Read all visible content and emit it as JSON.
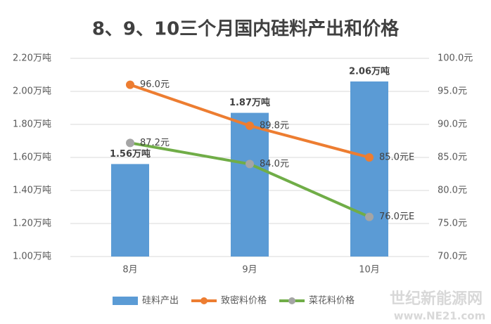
{
  "chart_data": {
    "type": "bar-line",
    "title": "8、9、10三个月国内硅料产出和价格",
    "categories": [
      "8月",
      "9月",
      "10月"
    ],
    "series": [
      {
        "name": "硅料产出",
        "type": "bar",
        "color": "#5b9bd5",
        "values": [
          1.56,
          1.87,
          2.06
        ],
        "value_labels": [
          "1.56万吨",
          "1.87万吨",
          "2.06万吨"
        ]
      },
      {
        "name": "致密料价格",
        "type": "line",
        "axis": "y2",
        "color": "#ed7d31",
        "marker_color": "#ed7d31",
        "values": [
          96.0,
          89.8,
          85.0
        ],
        "value_labels": [
          "96.0元",
          "89.8元",
          "85.0元E"
        ]
      },
      {
        "name": "菜花料价格",
        "type": "line",
        "axis": "y2",
        "color": "#70ad47",
        "marker_color": "#a5a5a5",
        "values": [
          87.2,
          84.0,
          76.0
        ],
        "value_labels": [
          "87.2元",
          "84.0元",
          "76.0元E"
        ]
      }
    ],
    "ylim": [
      1.0,
      2.2
    ],
    "yticks": [
      {
        "value": 1.0,
        "label": "1.00万吨"
      },
      {
        "value": 1.2,
        "label": "1.20万吨"
      },
      {
        "value": 1.4,
        "label": "1.40万吨"
      },
      {
        "value": 1.6,
        "label": "1.60万吨"
      },
      {
        "value": 1.8,
        "label": "1.80万吨"
      },
      {
        "value": 2.0,
        "label": "2.00万吨"
      },
      {
        "value": 2.2,
        "label": "2.20万吨"
      }
    ],
    "y2lim": [
      70,
      100
    ],
    "y2ticks": [
      {
        "value": 70,
        "label": "70.0元"
      },
      {
        "value": 75,
        "label": "75.0元"
      },
      {
        "value": 80,
        "label": "80.0元"
      },
      {
        "value": 85,
        "label": "85.0元"
      },
      {
        "value": 90,
        "label": "90.0元"
      },
      {
        "value": 95,
        "label": "95.0元"
      },
      {
        "value": 100,
        "label": "100.0元"
      }
    ],
    "grid": true,
    "legend": "bottom",
    "watermark": "世纪新能源网",
    "watermark_url": "www.NE21.com"
  }
}
